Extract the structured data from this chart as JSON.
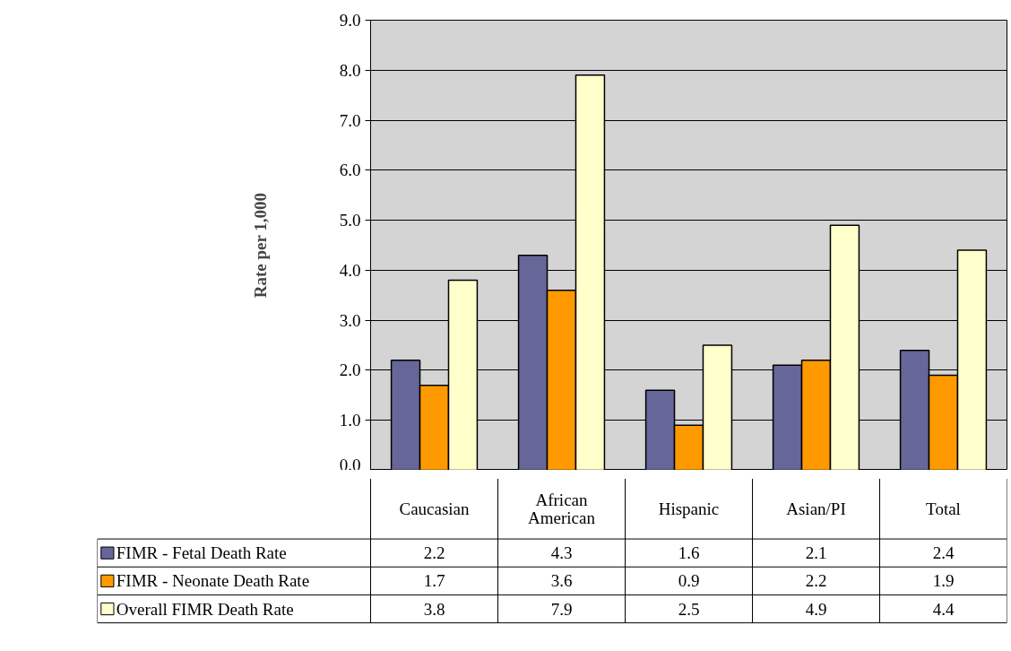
{
  "chart_data": {
    "type": "bar",
    "ylabel": "Rate per 1,000",
    "categories": [
      "Caucasian",
      "African American",
      "Hispanic",
      "Asian/PI",
      "Total"
    ],
    "series": [
      {
        "name": "FIMR - Fetal Death Rate",
        "color": "#666699",
        "values": [
          2.2,
          4.3,
          1.6,
          2.1,
          2.4
        ]
      },
      {
        "name": "FIMR - Neonate Death Rate",
        "color": "#ff9900",
        "values": [
          1.7,
          3.6,
          0.9,
          2.2,
          1.9
        ]
      },
      {
        "name": "Overall FIMR Death Rate",
        "color": "#ffffcc",
        "values": [
          3.8,
          7.9,
          2.5,
          4.9,
          4.4
        ]
      }
    ],
    "ylim": [
      0,
      9
    ],
    "yticks": [
      {
        "value": 0,
        "label": "0.0"
      },
      {
        "value": 1,
        "label": "1.0"
      },
      {
        "value": 2,
        "label": "2.0"
      },
      {
        "value": 3,
        "label": "3.0"
      },
      {
        "value": 4,
        "label": "4.0"
      },
      {
        "value": 5,
        "label": "5.0"
      },
      {
        "value": 6,
        "label": "6.0"
      },
      {
        "value": 7,
        "label": "7.0"
      },
      {
        "value": 8,
        "label": "8.0"
      },
      {
        "value": 9,
        "label": "9.0"
      }
    ],
    "grid": "y",
    "legend": "bottom",
    "data_labels": true
  }
}
